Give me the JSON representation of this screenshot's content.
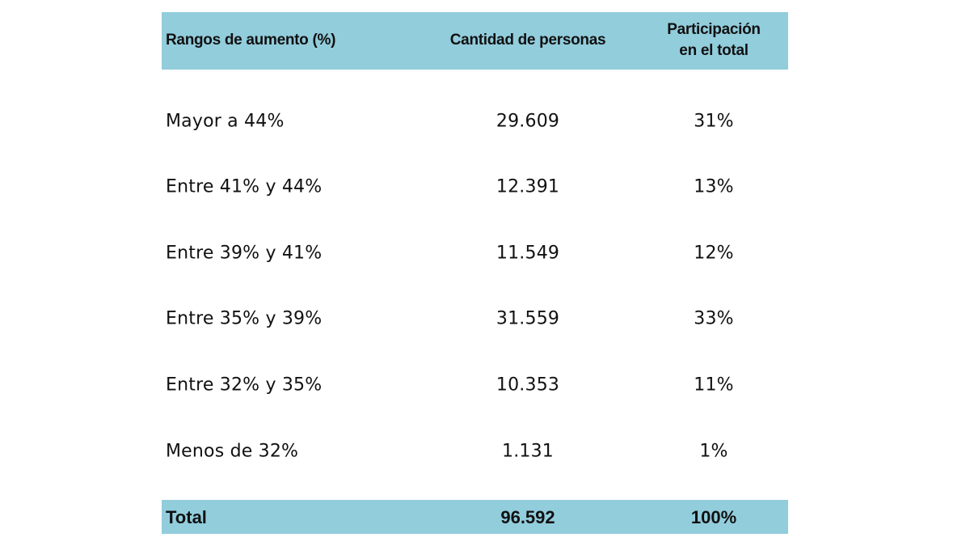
{
  "table": {
    "headers": [
      "Rangos de aumento (%)",
      "Cantidad de personas",
      "Participación",
      "en el total"
    ],
    "rows": [
      {
        "range": "Mayor a 44%",
        "count": "29.609",
        "share": "31%"
      },
      {
        "range": "Entre 41% y 44%",
        "count": "12.391",
        "share": "13%"
      },
      {
        "range": "Entre 39% y 41%",
        "count": "11.549",
        "share": "12%"
      },
      {
        "range": "Entre 35% y 39%",
        "count": "31.559",
        "share": "33%"
      },
      {
        "range": "Entre 32% y 35%",
        "count": "10.353",
        "share": "11%"
      },
      {
        "range": "Menos de 32%",
        "count": "1.131",
        "share": "1%"
      }
    ],
    "total": {
      "label": "Total",
      "count": "96.592",
      "share": "100%"
    }
  },
  "colors": {
    "band": "#92cddc"
  }
}
